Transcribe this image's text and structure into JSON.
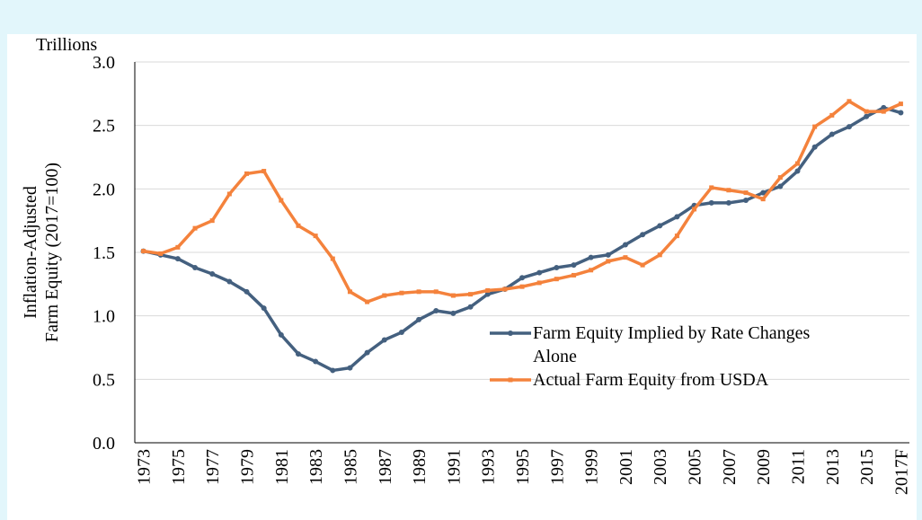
{
  "chart_data": {
    "type": "line",
    "unit_label": "Trillions",
    "ylabel": [
      "Inflation-Adjusted",
      "Farm Equity (2017=100)"
    ],
    "categories": [
      "1973",
      null,
      "1975",
      null,
      "1977",
      null,
      "1979",
      null,
      "1981",
      null,
      "1983",
      null,
      "1985",
      null,
      "1987",
      null,
      "1989",
      null,
      "1991",
      null,
      "1993",
      null,
      "1995",
      null,
      "1997",
      null,
      "1999",
      null,
      "2001",
      null,
      "2003",
      null,
      "2005",
      null,
      "2007",
      null,
      "2009",
      null,
      "2011",
      null,
      "2013",
      null,
      "2015",
      null,
      "2017F"
    ],
    "ylim": [
      0,
      3
    ],
    "yticks": [
      {
        "value": 0,
        "label": "0.0"
      },
      0.5,
      {
        "value": 1,
        "label": "1.0"
      },
      1.5,
      {
        "value": 2,
        "label": "2.0"
      },
      2.5,
      {
        "value": 3,
        "label": "3.0"
      }
    ],
    "grid": true,
    "series": [
      {
        "name": "Farm Equity Implied by Rate Changes Alone",
        "color": "#44607f",
        "marker": "circle",
        "values": [
          1.51,
          1.48,
          1.45,
          1.38,
          1.33,
          1.27,
          1.19,
          1.06,
          0.85,
          0.7,
          0.64,
          0.57,
          0.59,
          0.71,
          0.81,
          0.87,
          0.97,
          1.04,
          1.02,
          1.07,
          1.17,
          1.21,
          1.3,
          1.34,
          1.38,
          1.4,
          1.46,
          1.48,
          1.56,
          1.64,
          1.71,
          1.78,
          1.87,
          1.89,
          1.89,
          1.91,
          1.97,
          2.02,
          2.14,
          2.33,
          2.43,
          2.49,
          2.57,
          2.64,
          2.6
        ]
      },
      {
        "name": "Actual Farm Equity from USDA",
        "color": "#f4823c",
        "marker": "square",
        "values": [
          1.51,
          1.49,
          1.54,
          1.69,
          1.75,
          1.96,
          2.12,
          2.14,
          1.91,
          1.71,
          1.63,
          1.45,
          1.19,
          1.11,
          1.16,
          1.18,
          1.19,
          1.19,
          1.16,
          1.17,
          1.2,
          1.21,
          1.23,
          1.26,
          1.29,
          1.32,
          1.36,
          1.43,
          1.46,
          1.4,
          1.48,
          1.63,
          1.84,
          2.01,
          1.99,
          1.97,
          1.92,
          2.09,
          2.2,
          2.49,
          2.58,
          2.69,
          2.61,
          2.61,
          2.67
        ]
      }
    ]
  }
}
